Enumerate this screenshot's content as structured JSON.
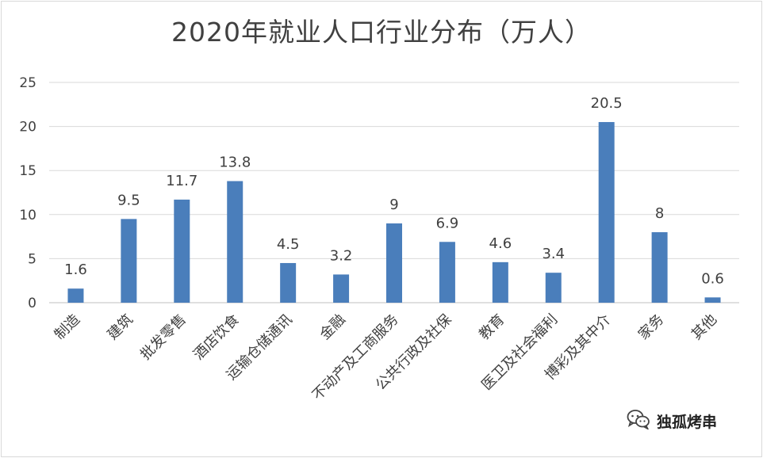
{
  "chart_data": {
    "type": "bar",
    "title": "2020年就业人口行业分布（万人）",
    "categories": [
      "制造",
      "建筑",
      "批发零售",
      "酒店饮食",
      "运输仓储通讯",
      "金融",
      "不动产及工商服务",
      "公共行政及社保",
      "教育",
      "医卫及社会福利",
      "博彩及其中介",
      "家务",
      "其他"
    ],
    "values": [
      1.6,
      9.5,
      11.7,
      13.8,
      4.5,
      3.2,
      9,
      6.9,
      4.6,
      3.4,
      20.5,
      8,
      0.6
    ],
    "data_labels": [
      "1.6",
      "9.5",
      "11.7",
      "13.8",
      "4.5",
      "3.2",
      "9",
      "6.9",
      "4.6",
      "3.4",
      "20.5",
      "8",
      "0.6"
    ],
    "y_ticks": [
      0,
      5,
      10,
      15,
      20,
      25
    ],
    "ylim": [
      0,
      25
    ],
    "xlabel": "",
    "ylabel": "",
    "grid": true,
    "bar_color": "#4a7ebb"
  },
  "watermark": {
    "icon": "wechat-icon",
    "text": "独孤烤串"
  }
}
